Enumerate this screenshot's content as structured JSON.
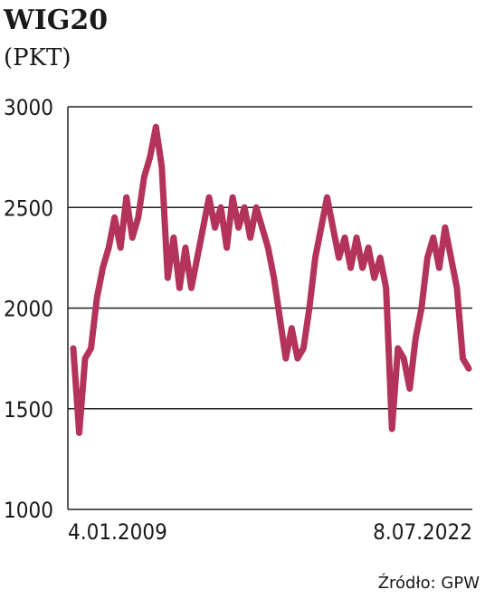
{
  "chart_data": {
    "type": "line",
    "title": "WIG20",
    "subtitle": "(PKT)",
    "source": "Źródło: GPW",
    "categories": [
      "4.01.2009",
      null,
      null,
      null,
      null,
      null,
      null,
      null,
      null,
      null,
      null,
      null,
      null,
      null,
      null,
      null,
      null,
      null,
      null,
      null,
      null,
      null,
      null,
      null,
      null,
      null,
      null,
      null,
      null,
      null,
      null,
      null,
      null,
      null,
      null,
      null,
      null,
      null,
      null,
      null,
      null,
      null,
      null,
      null,
      null,
      null,
      null,
      null,
      null,
      null,
      null,
      null,
      null,
      null,
      null,
      null,
      null,
      null,
      null,
      null,
      null,
      null,
      null,
      null,
      null,
      null,
      null,
      "8.07.2022"
    ],
    "series": [
      {
        "name": "WIG20",
        "color": "#b3335a",
        "values": [
          1800,
          1380,
          1750,
          1800,
          2050,
          2200,
          2300,
          2450,
          2300,
          2550,
          2350,
          2450,
          2650,
          2750,
          2900,
          2700,
          2150,
          2350,
          2100,
          2300,
          2100,
          2250,
          2400,
          2550,
          2400,
          2500,
          2300,
          2550,
          2400,
          2500,
          2350,
          2500,
          2400,
          2300,
          2150,
          1950,
          1750,
          1900,
          1750,
          1800,
          2000,
          2250,
          2400,
          2550,
          2400,
          2250,
          2350,
          2200,
          2350,
          2200,
          2300,
          2150,
          2250,
          2100,
          1400,
          1800,
          1750,
          1600,
          1850,
          2000,
          2250,
          2350,
          2200,
          2400,
          2250,
          2100,
          1750,
          1700
        ]
      }
    ],
    "ylim": [
      1000,
      3000
    ],
    "yticks": [
      1000,
      1500,
      2000,
      2500,
      3000
    ],
    "grid": true
  }
}
